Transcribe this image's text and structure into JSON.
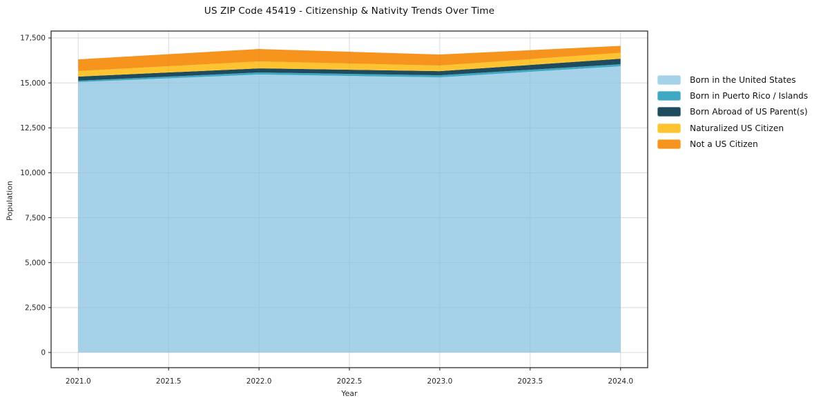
{
  "chart_data": {
    "type": "area",
    "stacked": true,
    "title": "US ZIP Code 45419 - Citizenship & Nativity Trends Over Time",
    "xlabel": "Year",
    "ylabel": "Population",
    "x": [
      2021,
      2022,
      2023,
      2024
    ],
    "series": [
      {
        "name": "Born in the United States",
        "color": "#a5d2e8",
        "values": [
          15045,
          15465,
          15310,
          15925
        ]
      },
      {
        "name": "Born in Puerto Rico / Islands",
        "color": "#3fa8c2",
        "values": [
          75,
          115,
          115,
          115
        ]
      },
      {
        "name": "Born Abroad of US Parent(s)",
        "color": "#1f4b5e",
        "values": [
          230,
          230,
          230,
          305
        ]
      },
      {
        "name": "Naturalized US Citizen",
        "color": "#fdc330",
        "values": [
          310,
          385,
          310,
          330
        ]
      },
      {
        "name": "Not a US Citizen",
        "color": "#f7941e",
        "values": [
          650,
          690,
          615,
          385
        ]
      }
    ],
    "totals": [
      16310,
      16885,
      16580,
      17060
    ],
    "xlim": [
      2020.85,
      2024.15
    ],
    "ylim": [
      -845,
      17885
    ],
    "xticks": [
      2021.0,
      2021.5,
      2022.0,
      2022.5,
      2023.0,
      2023.5,
      2024.0
    ],
    "xtick_labels": [
      "2021.0",
      "2021.5",
      "2022.0",
      "2022.5",
      "2023.0",
      "2023.5",
      "2024.0"
    ],
    "yticks": [
      0,
      2500,
      5000,
      7500,
      10000,
      12500,
      15000,
      17500
    ],
    "ytick_labels": [
      "0",
      "2,500",
      "5,000",
      "7,500",
      "10,000",
      "12,500",
      "15,000",
      "17,500"
    ],
    "grid": true,
    "grid_color": "#e7e7e7",
    "spine_color": "#1a1a1a",
    "text_color": "#262626",
    "legend_position": "right of axes, no frame"
  }
}
